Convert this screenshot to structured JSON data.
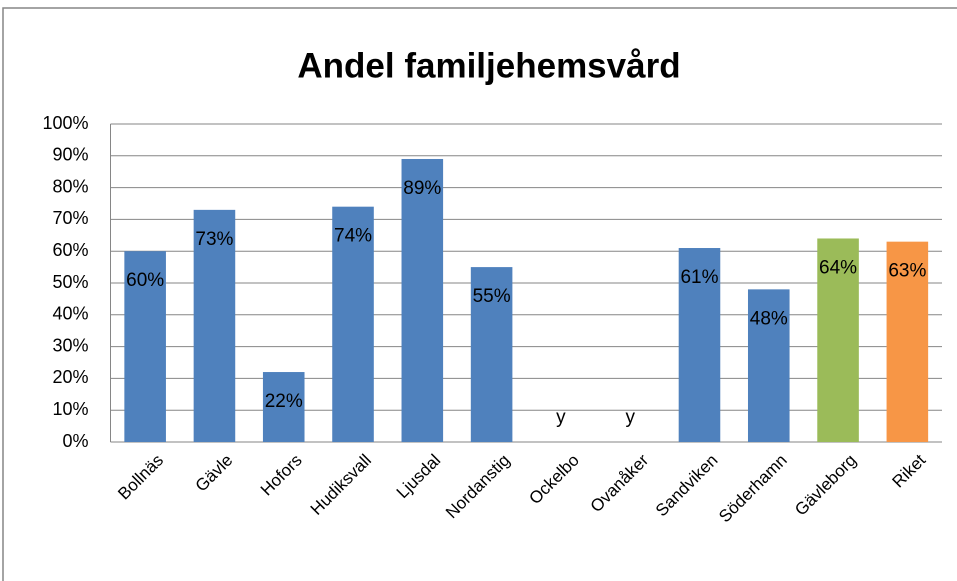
{
  "chart_data": {
    "type": "bar",
    "title": "Andel familjehemsvård",
    "categories": [
      "Bollnäs",
      "Gävle",
      "Hofors",
      "Hudiksvall",
      "Ljusdal",
      "Nordanstig",
      "Ockelbo",
      "Ovanåker",
      "Sandviken",
      "Söderhamn",
      "Gävleborg",
      "Riket"
    ],
    "values": [
      60,
      73,
      22,
      74,
      89,
      55,
      null,
      null,
      61,
      48,
      64,
      63
    ],
    "value_labels": [
      "60%",
      "73%",
      "22%",
      "74%",
      "89%",
      "55%",
      "y",
      "y",
      "61%",
      "48%",
      "64%",
      "63%"
    ],
    "colors": [
      "#4f81bd",
      "#4f81bd",
      "#4f81bd",
      "#4f81bd",
      "#4f81bd",
      "#4f81bd",
      "#4f81bd",
      "#4f81bd",
      "#4f81bd",
      "#4f81bd",
      "#9bbb59",
      "#f79646"
    ],
    "ylim": [
      0,
      100
    ],
    "yticks": [
      {
        "value": 0,
        "label": "0%"
      },
      {
        "value": 10,
        "label": "10%"
      },
      {
        "value": 20,
        "label": "20%"
      },
      {
        "value": 30,
        "label": "30%"
      },
      {
        "value": 40,
        "label": "40%"
      },
      {
        "value": 50,
        "label": "50%"
      },
      {
        "value": 60,
        "label": "60%"
      },
      {
        "value": 70,
        "label": "70%"
      },
      {
        "value": 80,
        "label": "80%"
      },
      {
        "value": 90,
        "label": "90%"
      },
      {
        "value": 100,
        "label": "100%"
      }
    ],
    "grid": true
  }
}
